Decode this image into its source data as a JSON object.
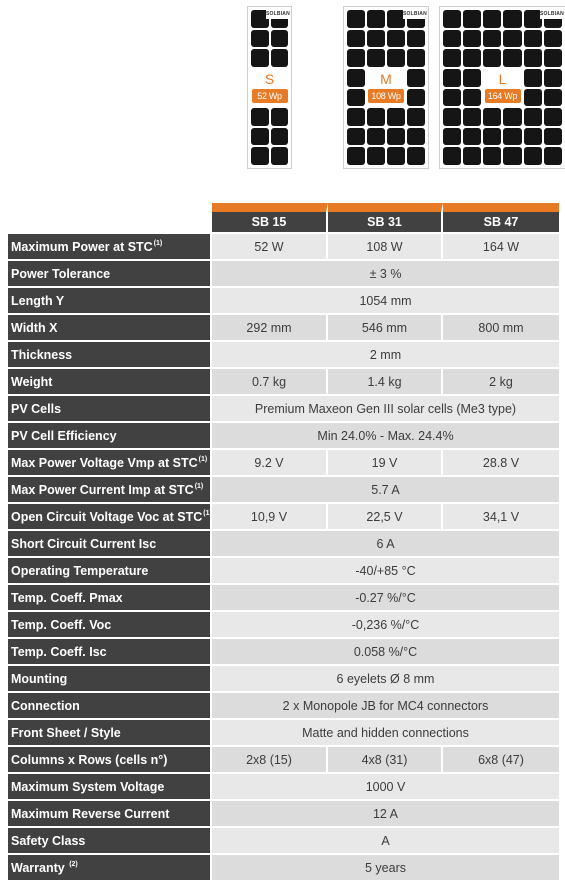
{
  "panels": [
    {
      "size": "S",
      "power": "52 Wp",
      "cols": 2,
      "rows": 8,
      "brand": "SOLBIAN"
    },
    {
      "size": "M",
      "power": "108 Wp",
      "cols": 4,
      "rows": 8,
      "brand": "SOLBIAN"
    },
    {
      "size": "L",
      "power": "164 Wp",
      "cols": 6,
      "rows": 8,
      "brand": "SOLBIAN"
    }
  ],
  "colors": {
    "accent": "#e77a24",
    "label_bg": "#414141",
    "cell": "#151515"
  },
  "table": {
    "headers": [
      "SB 15",
      "SB 31",
      "SB 47"
    ],
    "rows": [
      {
        "label": "Maximum Power at STC",
        "sup": "(1)",
        "values": [
          "52 W",
          "108 W",
          "164 W"
        ]
      },
      {
        "label": "Power Tolerance",
        "sup": "",
        "values": [
          "± 3 %"
        ]
      },
      {
        "label": "Length Y",
        "sup": "",
        "values": [
          "1054 mm"
        ]
      },
      {
        "label": "Width X",
        "sup": "",
        "values": [
          "292 mm",
          "546 mm",
          "800 mm"
        ]
      },
      {
        "label": "Thickness",
        "sup": "",
        "values": [
          "2 mm"
        ]
      },
      {
        "label": "Weight",
        "sup": "",
        "values": [
          "0.7 kg",
          "1.4 kg",
          "2 kg"
        ]
      },
      {
        "label": "PV Cells",
        "sup": "",
        "values": [
          "Premium Maxeon Gen III solar cells (Me3 type)"
        ]
      },
      {
        "label": "PV Cell Efficiency",
        "sup": "",
        "values": [
          "Min 24.0% - Max. 24.4%"
        ]
      },
      {
        "label": "Max Power Voltage Vmp at STC",
        "sup": "(1)",
        "values": [
          "9.2 V",
          "19 V",
          "28.8 V"
        ]
      },
      {
        "label": "Max Power Current Imp at STC",
        "sup": "(1)",
        "values": [
          "5.7 A"
        ]
      },
      {
        "label": "Open Circuit Voltage Voc at STC",
        "sup": "(1)",
        "values": [
          "10,9 V",
          "22,5 V",
          "34,1 V"
        ]
      },
      {
        "label": "Short Circuit Current Isc",
        "sup": "",
        "values": [
          "6 A"
        ]
      },
      {
        "label": "Operating Temperature",
        "sup": "",
        "values": [
          "-40/+85 °C"
        ]
      },
      {
        "label": "Temp. Coeff. Pmax",
        "sup": "",
        "values": [
          "-0.27 %/°C"
        ]
      },
      {
        "label": "Temp. Coeff. Voc",
        "sup": "",
        "values": [
          "-0,236 %/°C"
        ]
      },
      {
        "label": "Temp. Coeff. Isc",
        "sup": "",
        "values": [
          "0.058 %/°C"
        ]
      },
      {
        "label": "Mounting",
        "sup": "",
        "values": [
          "6 eyelets Ø 8 mm"
        ]
      },
      {
        "label": "Connection",
        "sup": "",
        "values": [
          "2 x Monopole JB for MC4 connectors"
        ]
      },
      {
        "label": "Front Sheet / Style",
        "sup": "",
        "values": [
          "Matte and hidden connections"
        ]
      },
      {
        "label": "Columns x Rows (cells n°)",
        "sup": "",
        "values": [
          "2x8 (15)",
          "4x8 (31)",
          "6x8 (47)"
        ]
      },
      {
        "label": "Maximum System Voltage",
        "sup": "",
        "values": [
          "1000 V"
        ]
      },
      {
        "label": "Maximum Reverse Current",
        "sup": "",
        "values": [
          "12 A"
        ]
      },
      {
        "label": "Safety Class",
        "sup": "",
        "values": [
          "A"
        ]
      },
      {
        "label": "Warranty ",
        "sup": "(2)",
        "values": [
          "5 years"
        ]
      }
    ]
  }
}
